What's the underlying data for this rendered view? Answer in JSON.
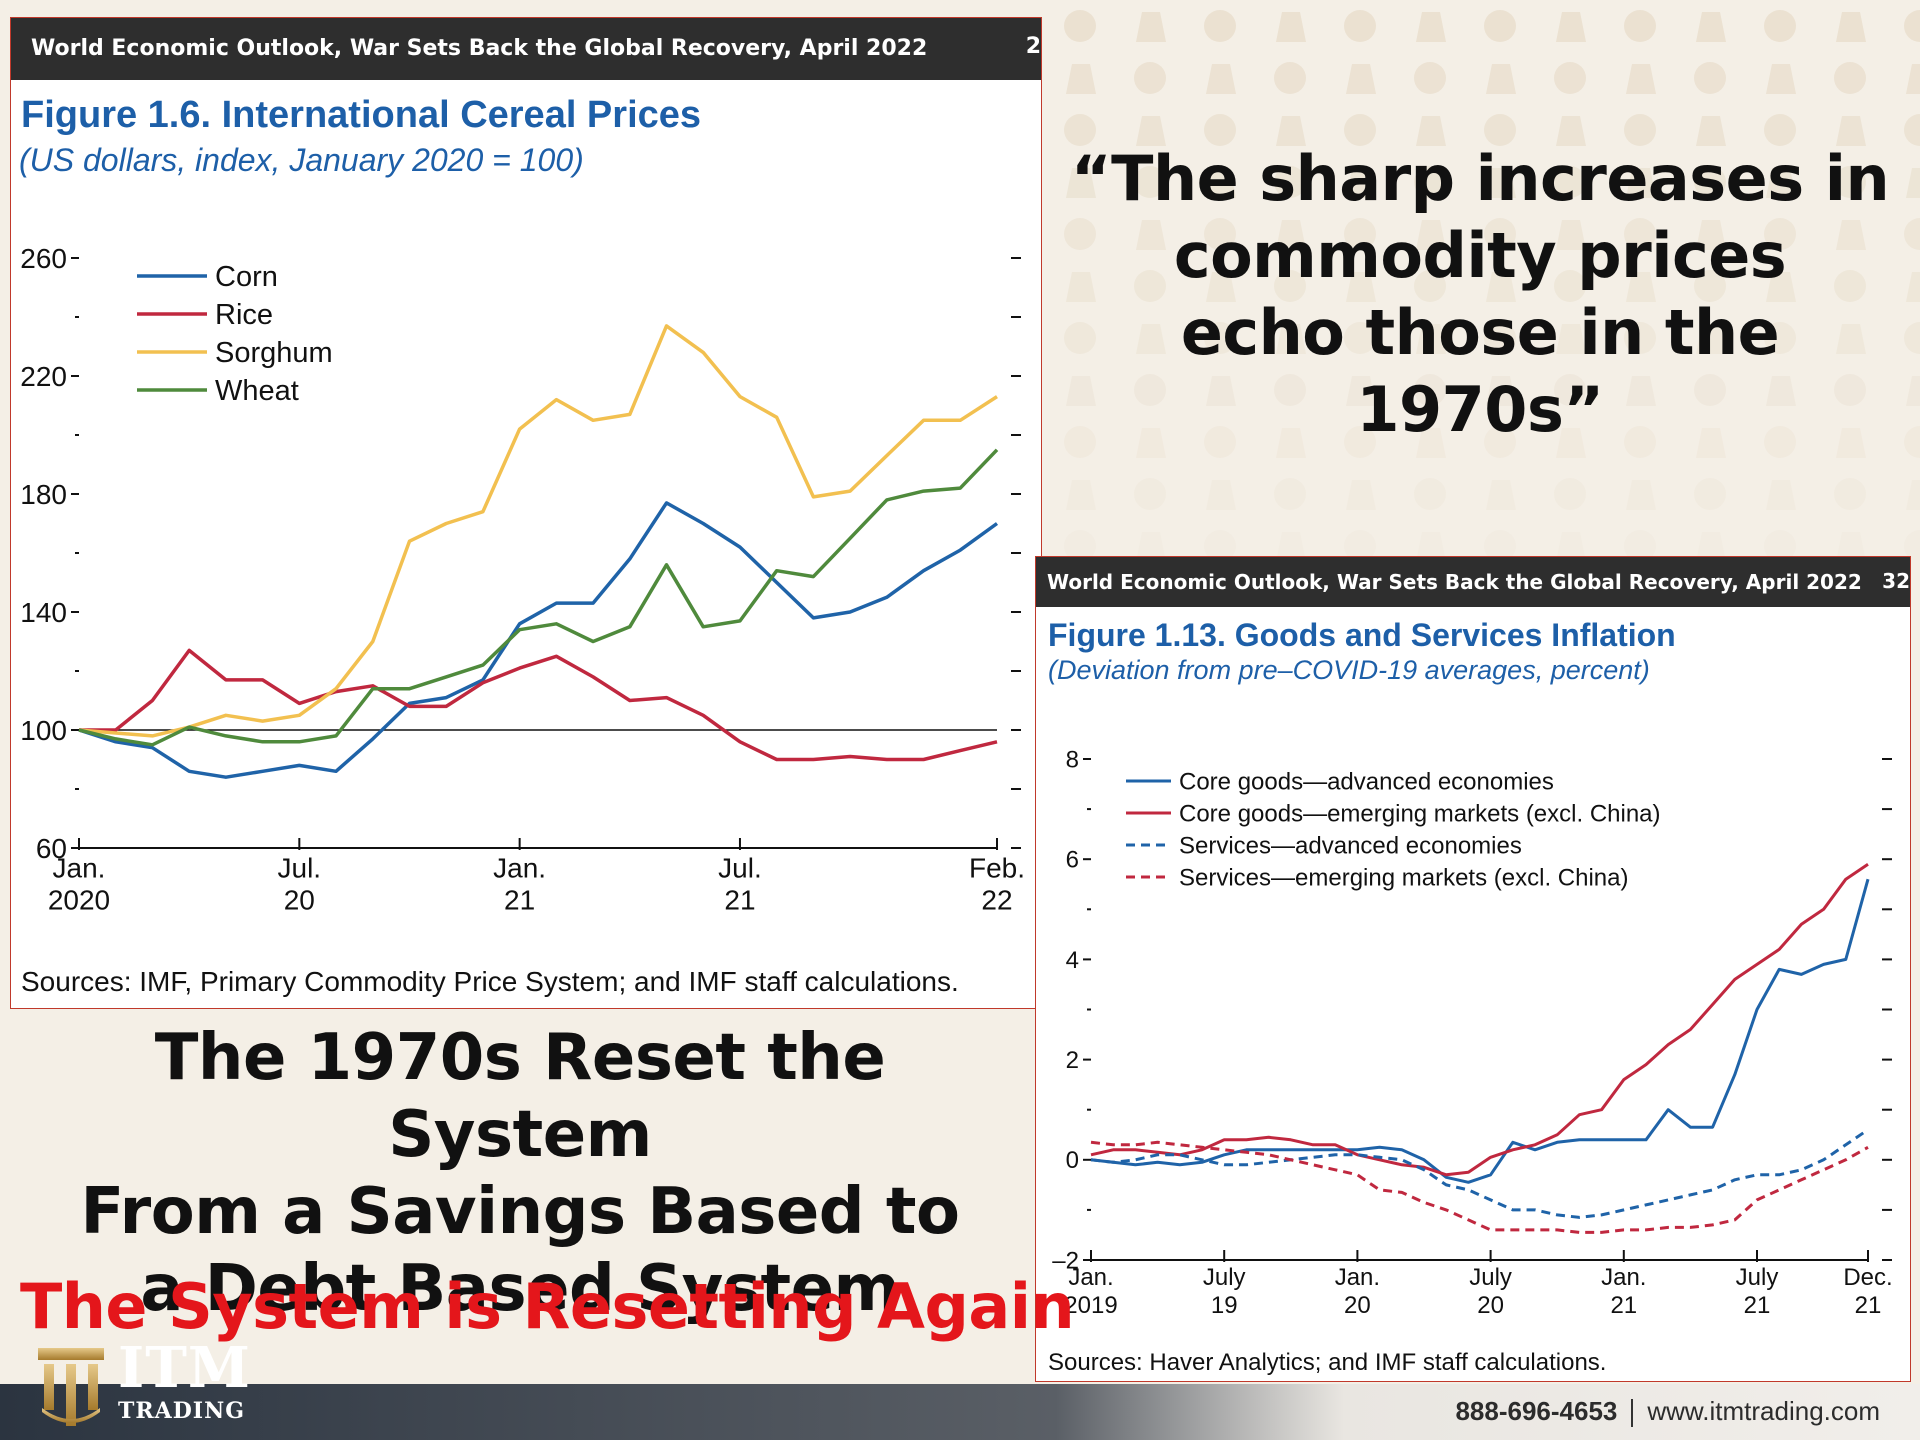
{
  "page": {
    "quote": [
      "“The sharp increases in",
      "commodity prices",
      "echo those in the 1970s”"
    ],
    "headline": [
      "The 1970s Reset the System",
      "From a Savings Based to",
      "a Debt Based System"
    ],
    "headline_red": "The System is Resetting Again",
    "footer": {
      "logo_main": "ITM",
      "logo_sub": "TRADING",
      "phone": "888-696-4653",
      "website": "www.itmtrading.com"
    },
    "colors": {
      "accent_red": "#e4161b",
      "figure_blue": "#1d5fa8",
      "header_dark": "#2e2e2e"
    },
    "icons": {
      "logo": "itm-columns-logo-icon"
    }
  },
  "chart_data": [
    {
      "type": "line",
      "source_header": "World Economic Outlook, War Sets Back the Global Recovery, April 2022",
      "page_number": "2",
      "title": "Figure 1.6.  International Cereal Prices",
      "subtitle": "(US dollars, index, January 2020 = 100)",
      "sources": "Sources: IMF, Primary Commodity Price System; and IMF staff calculations.",
      "ylim": [
        60,
        260
      ],
      "yticks": [
        60,
        100,
        140,
        180,
        220,
        260
      ],
      "baseline": 100,
      "x_labels": [
        {
          "line1": "Jan.",
          "line2": "2020",
          "month_index": 0
        },
        {
          "line1": "Jul.",
          "line2": "20",
          "month_index": 6
        },
        {
          "line1": "Jan.",
          "line2": "21",
          "month_index": 12
        },
        {
          "line1": "Jul.",
          "line2": "21",
          "month_index": 18
        },
        {
          "line1": "Feb.",
          "line2": "22",
          "month_index": 25
        }
      ],
      "x_months": [
        "Jan 2020",
        "Feb 2020",
        "Mar 2020",
        "Apr 2020",
        "May 2020",
        "Jun 2020",
        "Jul 2020",
        "Aug 2020",
        "Sep 2020",
        "Oct 2020",
        "Nov 2020",
        "Dec 2020",
        "Jan 2021",
        "Feb 2021",
        "Mar 2021",
        "Apr 2021",
        "May 2021",
        "Jun 2021",
        "Jul 2021",
        "Aug 2021",
        "Sep 2021",
        "Oct 2021",
        "Nov 2021",
        "Dec 2021",
        "Jan 2022",
        "Feb 2022"
      ],
      "legend_position": "top-left",
      "series": [
        {
          "name": "Corn",
          "color": "#1f63a8",
          "values": [
            100,
            96,
            94,
            86,
            84,
            86,
            88,
            86,
            97,
            109,
            111,
            117,
            136,
            143,
            143,
            158,
            177,
            170,
            162,
            150,
            138,
            140,
            145,
            154,
            161,
            170
          ]
        },
        {
          "name": "Rice",
          "color": "#c0283f",
          "values": [
            100,
            100,
            110,
            127,
            117,
            117,
            109,
            113,
            115,
            108,
            108,
            116,
            121,
            125,
            118,
            110,
            111,
            105,
            96,
            90,
            90,
            91,
            90,
            90,
            93,
            96
          ]
        },
        {
          "name": "Sorghum",
          "color": "#f2c050",
          "values": [
            100,
            99,
            98,
            101,
            105,
            103,
            105,
            114,
            130,
            164,
            170,
            174,
            202,
            212,
            205,
            207,
            237,
            228,
            213,
            206,
            179,
            181,
            193,
            205,
            205,
            213
          ]
        },
        {
          "name": "Wheat",
          "color": "#4f8a3c",
          "values": [
            100,
            97,
            95,
            101,
            98,
            96,
            96,
            98,
            114,
            114,
            118,
            122,
            134,
            136,
            130,
            135,
            156,
            135,
            137,
            154,
            152,
            165,
            178,
            181,
            182,
            195
          ]
        }
      ]
    },
    {
      "type": "line",
      "source_header": "World Economic Outlook, War Sets Back the Global Recovery, April 2022",
      "page_number": "32",
      "title": "Figure 1.13.  Goods and Services Inflation",
      "subtitle": "(Deviation from pre–COVID-19 averages, percent)",
      "sources": "Sources: Haver Analytics; and IMF staff calculations.",
      "ylim": [
        -2,
        8
      ],
      "yticks": [
        -2,
        0,
        2,
        4,
        6,
        8
      ],
      "yticklabels": [
        "–2",
        "0",
        "2",
        "4",
        "6",
        "8"
      ],
      "x_labels": [
        {
          "line1": "Jan.",
          "line2": "2019",
          "month_index": 0
        },
        {
          "line1": "July",
          "line2": "19",
          "month_index": 6
        },
        {
          "line1": "Jan.",
          "line2": "20",
          "month_index": 12
        },
        {
          "line1": "July",
          "line2": "20",
          "month_index": 18
        },
        {
          "line1": "Jan.",
          "line2": "21",
          "month_index": 24
        },
        {
          "line1": "July",
          "line2": "21",
          "month_index": 30
        },
        {
          "line1": "Dec.",
          "line2": "21",
          "month_index": 35
        }
      ],
      "legend_position": "top-left",
      "series": [
        {
          "name": "Core goods—advanced economies",
          "color": "#1f63a8",
          "dash": "solid",
          "values": [
            0.0,
            -0.05,
            -0.1,
            -0.05,
            -0.1,
            -0.05,
            0.1,
            0.2,
            0.2,
            0.2,
            0.2,
            0.2,
            0.2,
            0.25,
            0.2,
            0.0,
            -0.35,
            -0.45,
            -0.3,
            0.35,
            0.2,
            0.35,
            0.4,
            0.4,
            0.4,
            0.4,
            1.0,
            0.65,
            0.65,
            1.7,
            3.0,
            3.8,
            3.7,
            3.9,
            4.0,
            5.6
          ]
        },
        {
          "name": "Core goods—emerging markets (excl. China)",
          "color": "#c0283f",
          "dash": "solid",
          "values": [
            0.1,
            0.2,
            0.2,
            0.15,
            0.1,
            0.2,
            0.4,
            0.4,
            0.45,
            0.4,
            0.3,
            0.3,
            0.1,
            0.0,
            -0.1,
            -0.15,
            -0.3,
            -0.25,
            0.05,
            0.2,
            0.3,
            0.5,
            0.9,
            1.0,
            1.6,
            1.9,
            2.3,
            2.6,
            3.1,
            3.6,
            3.9,
            4.2,
            4.7,
            5.0,
            5.6,
            5.9
          ]
        },
        {
          "name": "Services—advanced economies",
          "color": "#1f63a8",
          "dash": "dashed",
          "values": [
            0.0,
            -0.05,
            0.0,
            0.1,
            0.1,
            0.0,
            -0.1,
            -0.1,
            -0.05,
            0.0,
            0.05,
            0.1,
            0.1,
            0.05,
            0.0,
            -0.2,
            -0.5,
            -0.6,
            -0.8,
            -1.0,
            -1.0,
            -1.1,
            -1.15,
            -1.1,
            -1.0,
            -0.9,
            -0.8,
            -0.7,
            -0.6,
            -0.4,
            -0.3,
            -0.3,
            -0.2,
            0.0,
            0.3,
            0.6
          ]
        },
        {
          "name": "Services—emerging markets (excl. China)",
          "color": "#c0283f",
          "dash": "dashed",
          "values": [
            0.35,
            0.3,
            0.3,
            0.35,
            0.3,
            0.25,
            0.2,
            0.15,
            0.1,
            0.0,
            -0.1,
            -0.2,
            -0.3,
            -0.6,
            -0.65,
            -0.85,
            -1.0,
            -1.2,
            -1.4,
            -1.4,
            -1.4,
            -1.4,
            -1.45,
            -1.45,
            -1.4,
            -1.4,
            -1.35,
            -1.35,
            -1.3,
            -1.2,
            -0.8,
            -0.6,
            -0.4,
            -0.2,
            0.0,
            0.25
          ]
        }
      ]
    }
  ]
}
